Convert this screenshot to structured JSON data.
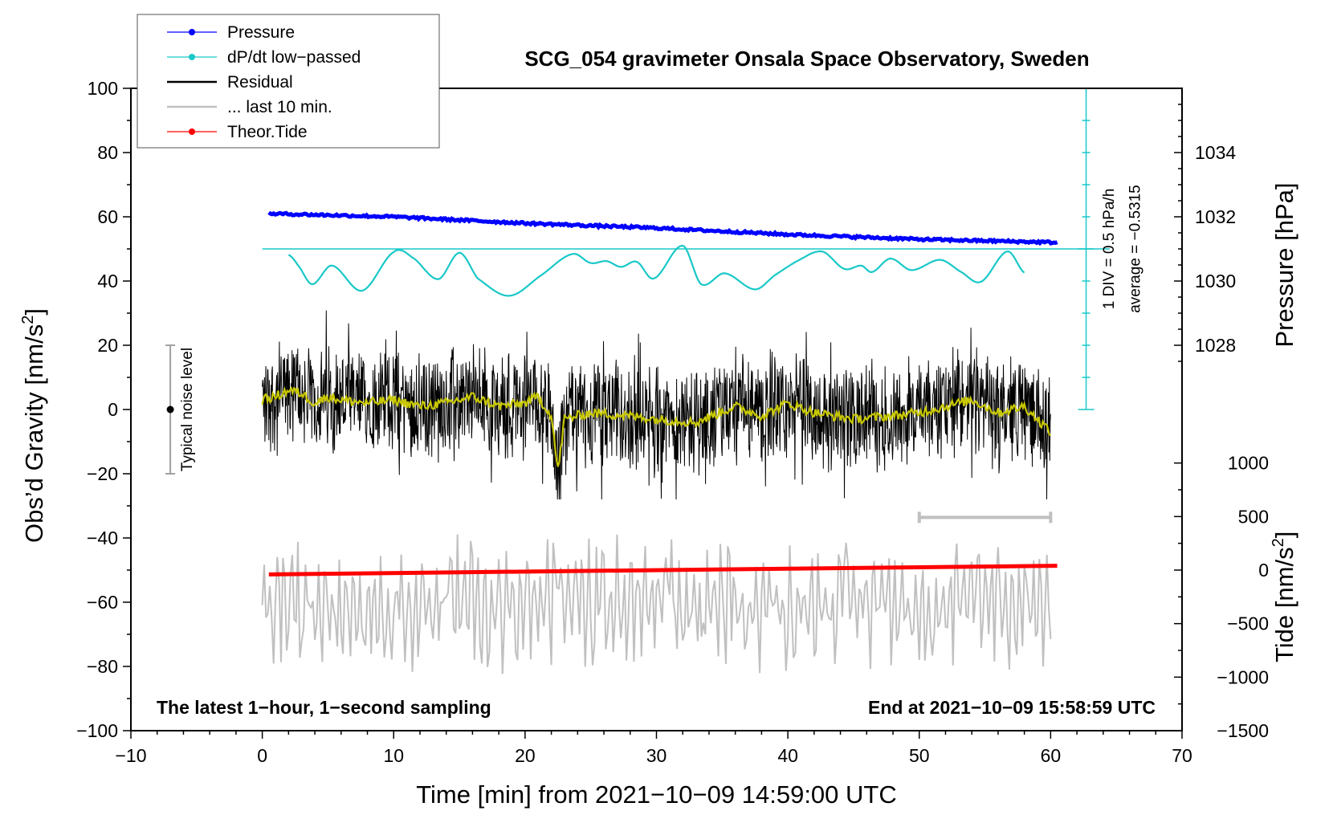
{
  "chart_data": {
    "type": "line",
    "title": "SCG_054 gravimeter Onsala Space Observatory, Sweden",
    "xlabel": "Time [min] from 2021−10−09 14:59:00 UTC",
    "ylabel_left": "Obs’d Gravity [nm/s",
    "ylabel_left_sup": "2",
    "ylabel_left_end": "]",
    "ylabel_right_top": "Pressure [hPa]",
    "ylabel_right_bottom": "Tide [nm/s",
    "ylabel_right_bottom_sup": "2",
    "ylabel_right_bottom_end": "]",
    "xlim": [
      -10,
      70
    ],
    "ylim": [
      -100,
      100
    ],
    "x_ticks": [
      -10,
      0,
      10,
      20,
      30,
      40,
      50,
      60,
      70
    ],
    "x_tick_labels": [
      "−10",
      "0",
      "10",
      "20",
      "30",
      "40",
      "50",
      "60",
      "70"
    ],
    "y_ticks": [
      -100,
      -80,
      -60,
      -40,
      -20,
      0,
      20,
      40,
      60,
      80,
      100
    ],
    "y_tick_labels": [
      "−100",
      "−80",
      "−60",
      "−40",
      "−20",
      "0",
      "20",
      "40",
      "60",
      "80",
      "100"
    ],
    "pressure_axis": {
      "ticks": [
        1028,
        1030,
        1032,
        1034
      ],
      "tick_labels": [
        "1028",
        "1030",
        "1032",
        "1034"
      ],
      "gravity_at_1028": 20,
      "gravity_per_hpa": 10
    },
    "tide_axis": {
      "ticks": [
        -1500,
        -1000,
        -500,
        0,
        500,
        1000
      ],
      "tick_labels": [
        "−1500",
        "−1000",
        "−500",
        "0",
        "500",
        "1000"
      ],
      "gravity_at_zero": -50,
      "gravity_per_unit": 0.033333
    },
    "legend": {
      "position": "top-left",
      "entries": [
        {
          "label": "Pressure",
          "color": "#0000ff",
          "marker": true
        },
        {
          "label": "dP/dt low−passed",
          "color": "#19c8c8",
          "marker": true
        },
        {
          "label": "Residual",
          "color": "#000000",
          "marker": false
        },
        {
          "label": "... last 10 min.",
          "color": "#c0c0c0",
          "marker": false
        },
        {
          "label": "Theor.Tide",
          "color": "#ff0000",
          "marker": true
        }
      ]
    },
    "series": [
      {
        "name": "Pressure",
        "color": "#0000ff",
        "unit": "hPa",
        "x": [
          0.5,
          10,
          20,
          30,
          40,
          50,
          60.5
        ],
        "values": [
          1032.1,
          1032.0,
          1031.8,
          1031.65,
          1031.45,
          1031.3,
          1031.2
        ]
      },
      {
        "name": "dP/dt low-passed",
        "color": "#19c8c8",
        "unit": "hPa/h",
        "x": [
          2,
          2.7,
          3.8,
          5.3,
          7.6,
          10,
          11.4,
          13.4,
          15,
          16.4,
          18.8,
          21.3,
          23.6,
          25,
          26.2,
          27.3,
          28.5,
          29.8,
          32,
          33.4,
          35.2,
          37.5,
          39,
          40.7,
          42.6,
          44.3,
          45.6,
          46.4,
          47.8,
          49.4,
          51.6,
          53.2,
          54.7,
          56.7,
          58
        ],
        "values": [
          -0.09,
          -0.25,
          -0.55,
          -0.26,
          -0.65,
          -0.05,
          -0.13,
          -0.47,
          -0.06,
          -0.46,
          -0.73,
          -0.4,
          -0.08,
          -0.22,
          -0.19,
          -0.28,
          -0.2,
          -0.46,
          0.05,
          -0.55,
          -0.38,
          -0.63,
          -0.41,
          -0.19,
          -0.04,
          -0.31,
          -0.26,
          -0.36,
          -0.15,
          -0.33,
          -0.17,
          -0.36,
          -0.51,
          -0.04,
          -0.37
        ]
      },
      {
        "name": "Residual",
        "color": "#000000",
        "unit": "nm/s2",
        "x": [
          0,
          60
        ],
        "range": [
          -28,
          35
        ]
      },
      {
        "name": "Residual smoothed",
        "color": "#c8c800",
        "unit": "nm/s2",
        "x": [
          0,
          1,
          2,
          3,
          4,
          5,
          6,
          8,
          10,
          12,
          14,
          16,
          18,
          20,
          21,
          22,
          22.5,
          23,
          25,
          28,
          30,
          33,
          36,
          38,
          40,
          42,
          45,
          48,
          50,
          52,
          54,
          56,
          58,
          60
        ],
        "values": [
          3,
          4,
          6,
          5,
          2,
          4,
          3,
          2,
          3,
          1,
          2,
          4,
          1,
          2,
          4,
          -2,
          -19,
          -3,
          -1,
          -2,
          -3,
          -4,
          1,
          -2,
          2,
          -1,
          -3,
          -2,
          -1,
          1,
          3,
          -1,
          1,
          -7
        ]
      },
      {
        "name": "... last 10 min.",
        "color": "#c0c0c0",
        "unit": "nm/s2",
        "x": [
          0,
          60
        ],
        "range": [
          -85,
          -36
        ]
      },
      {
        "name": "Theor.Tide",
        "color": "#ff0000",
        "unit": "nm/s2",
        "x": [
          0.5,
          60.5
        ],
        "values": [
          -40,
          40
        ]
      }
    ],
    "divider_line": {
      "value_hpa_per_h": 0.0
    },
    "last10_bar": {
      "x": [
        50,
        60
      ],
      "tide_value": 500
    },
    "noise_level": {
      "x": -7,
      "center": 0,
      "low": -20,
      "high": 20,
      "label": "Typical noise level"
    },
    "scale_annotation": {
      "line1": "1 DIV = 0.5 hPa/h",
      "line2": "average = −0.5315"
    },
    "notes": {
      "bottom_left": "The latest 1−hour, 1−second sampling",
      "bottom_right": "End at 2021−10−09 15:58:59 UTC"
    }
  }
}
